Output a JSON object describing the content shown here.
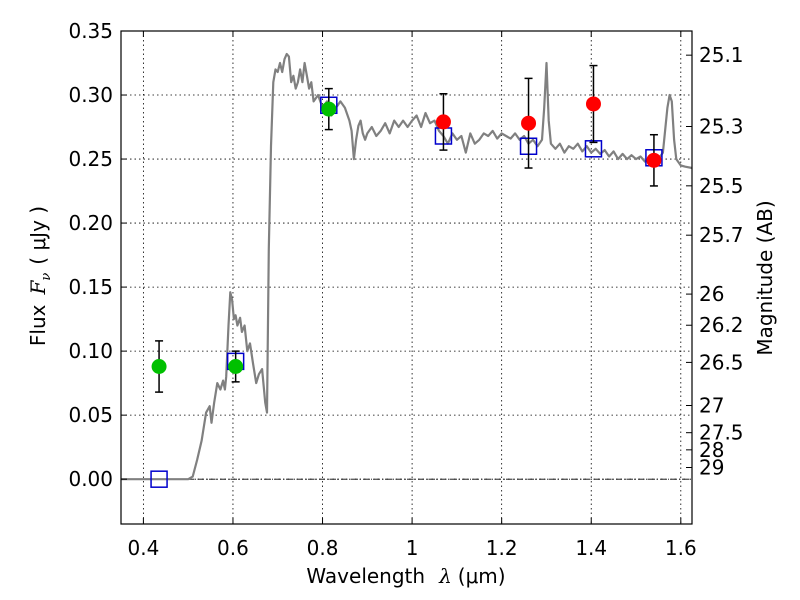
{
  "chart_data": {
    "type": "scatter",
    "xlabel": "Wavelength",
    "xlabel_symbol": "λ",
    "xlabel_unit": "(μm)",
    "ylabel_prefix": "Flux",
    "ylabel_symbol": "F",
    "ylabel_sub": "ν",
    "ylabel_unit": "( μJy )",
    "ylabel_right": "Magnitude (AB)",
    "xlim": [
      0.35,
      1.625
    ],
    "ylim": [
      -0.035,
      0.35
    ],
    "grid": true,
    "x_ticks": [
      {
        "value": 0.4,
        "label": "0.4"
      },
      {
        "value": 0.6,
        "label": "0.6"
      },
      {
        "value": 0.8,
        "label": "0.8"
      },
      {
        "value": 1.0,
        "label": "1"
      },
      {
        "value": 1.2,
        "label": "1.2"
      },
      {
        "value": 1.4,
        "label": "1.4"
      },
      {
        "value": 1.6,
        "label": "1.6"
      }
    ],
    "y_ticks": [
      {
        "value": 0.0,
        "label": "0.00"
      },
      {
        "value": 0.05,
        "label": "0.05"
      },
      {
        "value": 0.1,
        "label": "0.10"
      },
      {
        "value": 0.15,
        "label": "0.15"
      },
      {
        "value": 0.2,
        "label": "0.20"
      },
      {
        "value": 0.25,
        "label": "0.25"
      },
      {
        "value": 0.3,
        "label": "0.30"
      },
      {
        "value": 0.35,
        "label": "0.35"
      }
    ],
    "right_ticks": [
      {
        "mag": 25.1,
        "label": "25.1"
      },
      {
        "mag": 25.3,
        "label": "25.3"
      },
      {
        "mag": 25.5,
        "label": "25.5"
      },
      {
        "mag": 25.7,
        "label": "25.7"
      },
      {
        "mag": 26,
        "label": "26"
      },
      {
        "mag": 26.2,
        "label": "26.2"
      },
      {
        "mag": 26.5,
        "label": "26.5"
      },
      {
        "mag": 27,
        "label": "27"
      },
      {
        "mag": 27.5,
        "label": "27.5"
      },
      {
        "mag": 28,
        "label": "28"
      },
      {
        "mag": 29,
        "label": "29"
      }
    ],
    "colors": {
      "model": "#808080",
      "green": "#00c000",
      "red": "#ff0000",
      "square": "#0000cc",
      "errorbar": "#000000",
      "grid": "#000000"
    },
    "model_spectrum": [
      [
        0.35,
        0.0
      ],
      [
        0.5,
        0.0
      ],
      [
        0.51,
        0.002
      ],
      [
        0.52,
        0.015
      ],
      [
        0.53,
        0.03
      ],
      [
        0.54,
        0.052
      ],
      [
        0.548,
        0.057
      ],
      [
        0.552,
        0.044
      ],
      [
        0.558,
        0.06
      ],
      [
        0.565,
        0.075
      ],
      [
        0.572,
        0.07
      ],
      [
        0.578,
        0.077
      ],
      [
        0.582,
        0.07
      ],
      [
        0.585,
        0.08
      ],
      [
        0.59,
        0.12
      ],
      [
        0.594,
        0.146
      ],
      [
        0.598,
        0.14
      ],
      [
        0.602,
        0.125
      ],
      [
        0.606,
        0.128
      ],
      [
        0.61,
        0.12
      ],
      [
        0.616,
        0.126
      ],
      [
        0.62,
        0.115
      ],
      [
        0.626,
        0.12
      ],
      [
        0.632,
        0.1
      ],
      [
        0.638,
        0.106
      ],
      [
        0.645,
        0.09
      ],
      [
        0.652,
        0.075
      ],
      [
        0.658,
        0.082
      ],
      [
        0.665,
        0.086
      ],
      [
        0.672,
        0.06
      ],
      [
        0.676,
        0.052
      ],
      [
        0.68,
        0.18
      ],
      [
        0.685,
        0.26
      ],
      [
        0.69,
        0.31
      ],
      [
        0.695,
        0.32
      ],
      [
        0.7,
        0.318
      ],
      [
        0.705,
        0.325
      ],
      [
        0.71,
        0.318
      ],
      [
        0.715,
        0.328
      ],
      [
        0.72,
        0.332
      ],
      [
        0.725,
        0.33
      ],
      [
        0.73,
        0.31
      ],
      [
        0.735,
        0.315
      ],
      [
        0.74,
        0.305
      ],
      [
        0.745,
        0.31
      ],
      [
        0.75,
        0.32
      ],
      [
        0.755,
        0.31
      ],
      [
        0.76,
        0.325
      ],
      [
        0.765,
        0.315
      ],
      [
        0.77,
        0.305
      ],
      [
        0.775,
        0.31
      ],
      [
        0.78,
        0.295
      ],
      [
        0.79,
        0.3
      ],
      [
        0.8,
        0.29
      ],
      [
        0.81,
        0.295
      ],
      [
        0.82,
        0.284
      ],
      [
        0.83,
        0.29
      ],
      [
        0.84,
        0.295
      ],
      [
        0.85,
        0.29
      ],
      [
        0.86,
        0.28
      ],
      [
        0.865,
        0.272
      ],
      [
        0.87,
        0.25
      ],
      [
        0.875,
        0.265
      ],
      [
        0.88,
        0.276
      ],
      [
        0.885,
        0.28
      ],
      [
        0.89,
        0.27
      ],
      [
        0.895,
        0.265
      ],
      [
        0.9,
        0.27
      ],
      [
        0.91,
        0.275
      ],
      [
        0.92,
        0.268
      ],
      [
        0.93,
        0.272
      ],
      [
        0.94,
        0.278
      ],
      [
        0.95,
        0.27
      ],
      [
        0.96,
        0.28
      ],
      [
        0.97,
        0.275
      ],
      [
        0.98,
        0.28
      ],
      [
        0.99,
        0.275
      ],
      [
        1.0,
        0.28
      ],
      [
        1.01,
        0.284
      ],
      [
        1.02,
        0.275
      ],
      [
        1.03,
        0.286
      ],
      [
        1.04,
        0.278
      ],
      [
        1.05,
        0.28
      ],
      [
        1.06,
        0.272
      ],
      [
        1.07,
        0.268
      ],
      [
        1.08,
        0.262
      ],
      [
        1.09,
        0.27
      ],
      [
        1.1,
        0.265
      ],
      [
        1.11,
        0.268
      ],
      [
        1.12,
        0.255
      ],
      [
        1.13,
        0.27
      ],
      [
        1.14,
        0.262
      ],
      [
        1.15,
        0.265
      ],
      [
        1.16,
        0.27
      ],
      [
        1.17,
        0.268
      ],
      [
        1.18,
        0.272
      ],
      [
        1.19,
        0.266
      ],
      [
        1.2,
        0.27
      ],
      [
        1.21,
        0.268
      ],
      [
        1.22,
        0.266
      ],
      [
        1.23,
        0.27
      ],
      [
        1.24,
        0.265
      ],
      [
        1.25,
        0.268
      ],
      [
        1.26,
        0.262
      ],
      [
        1.27,
        0.265
      ],
      [
        1.28,
        0.26
      ],
      [
        1.29,
        0.265
      ],
      [
        1.295,
        0.29
      ],
      [
        1.3,
        0.325
      ],
      [
        1.305,
        0.28
      ],
      [
        1.31,
        0.262
      ],
      [
        1.32,
        0.258
      ],
      [
        1.33,
        0.262
      ],
      [
        1.34,
        0.255
      ],
      [
        1.35,
        0.26
      ],
      [
        1.36,
        0.258
      ],
      [
        1.37,
        0.262
      ],
      [
        1.38,
        0.256
      ],
      [
        1.39,
        0.26
      ],
      [
        1.4,
        0.255
      ],
      [
        1.41,
        0.258
      ],
      [
        1.42,
        0.254
      ],
      [
        1.43,
        0.257
      ],
      [
        1.44,
        0.252
      ],
      [
        1.45,
        0.256
      ],
      [
        1.46,
        0.25
      ],
      [
        1.47,
        0.254
      ],
      [
        1.48,
        0.25
      ],
      [
        1.49,
        0.253
      ],
      [
        1.5,
        0.25
      ],
      [
        1.51,
        0.252
      ],
      [
        1.52,
        0.248
      ],
      [
        1.53,
        0.25
      ],
      [
        1.54,
        0.247
      ],
      [
        1.55,
        0.25
      ],
      [
        1.56,
        0.255
      ],
      [
        1.57,
        0.29
      ],
      [
        1.575,
        0.3
      ],
      [
        1.58,
        0.295
      ],
      [
        1.585,
        0.265
      ],
      [
        1.59,
        0.25
      ],
      [
        1.6,
        0.245
      ],
      [
        1.61,
        0.244
      ],
      [
        1.625,
        0.243
      ]
    ],
    "model_photometry": [
      {
        "x": 0.435,
        "y": 0.0
      },
      {
        "x": 0.606,
        "y": 0.092
      },
      {
        "x": 0.814,
        "y": 0.292
      },
      {
        "x": 1.07,
        "y": 0.268
      },
      {
        "x": 1.26,
        "y": 0.26
      },
      {
        "x": 1.405,
        "y": 0.258
      },
      {
        "x": 1.54,
        "y": 0.251
      }
    ],
    "observed_green": [
      {
        "x": 0.435,
        "y": 0.088,
        "err": 0.02
      },
      {
        "x": 0.606,
        "y": 0.088,
        "err": 0.012
      },
      {
        "x": 0.814,
        "y": 0.289,
        "err": 0.016
      }
    ],
    "observed_red": [
      {
        "x": 1.07,
        "y": 0.279,
        "err": 0.022
      },
      {
        "x": 1.26,
        "y": 0.278,
        "err": 0.035
      },
      {
        "x": 1.405,
        "y": 0.293,
        "err": 0.03
      },
      {
        "x": 1.54,
        "y": 0.249,
        "err": 0.02
      }
    ]
  }
}
